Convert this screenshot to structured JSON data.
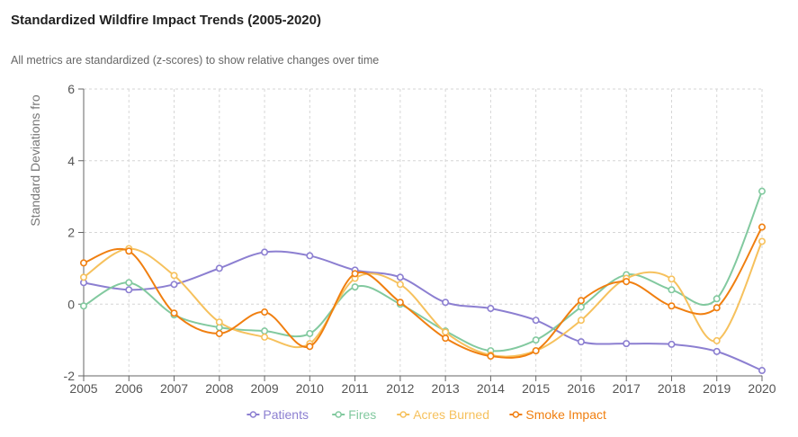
{
  "chart_data": {
    "type": "line",
    "title": "Standardized Wildfire Impact Trends (2005-2020)",
    "subtitle": "All metrics are standardized (z-scores) to show relative changes over time",
    "ylabel": "Standard Deviations fro",
    "xlabel": "",
    "x": [
      "2005",
      "2006",
      "2007",
      "2008",
      "2009",
      "2010",
      "2011",
      "2012",
      "2013",
      "2014",
      "2015",
      "2016",
      "2017",
      "2018",
      "2019",
      "2020"
    ],
    "ylim": [
      -2,
      6
    ],
    "yticks": [
      "6",
      "4",
      "2",
      "0",
      "-2"
    ],
    "grid": true,
    "legend_position": "bottom",
    "series": [
      {
        "name": "Patients",
        "color": "#8c7fd1",
        "values": [
          0.6,
          0.4,
          0.55,
          1.0,
          1.45,
          1.35,
          0.95,
          0.75,
          0.05,
          -0.12,
          -0.45,
          -1.05,
          -1.1,
          -1.12,
          -1.32,
          -1.85
        ]
      },
      {
        "name": "Fires",
        "color": "#82c99f",
        "values": [
          -0.05,
          0.6,
          -0.3,
          -0.65,
          -0.75,
          -0.82,
          0.48,
          0.0,
          -0.75,
          -1.3,
          -1.0,
          -0.08,
          0.82,
          0.4,
          0.15,
          3.15
        ]
      },
      {
        "name": "Acres Burned",
        "color": "#f6c15d",
        "values": [
          0.75,
          1.55,
          0.8,
          -0.5,
          -0.92,
          -1.1,
          0.72,
          0.55,
          -0.78,
          -1.42,
          -1.3,
          -0.45,
          0.72,
          0.7,
          -1.02,
          1.75
        ]
      },
      {
        "name": "Smoke Impact",
        "color": "#f07f10",
        "values": [
          1.15,
          1.48,
          -0.25,
          -0.82,
          -0.22,
          -1.18,
          0.85,
          0.05,
          -0.95,
          -1.45,
          -1.3,
          0.1,
          0.63,
          -0.05,
          -0.1,
          2.15
        ]
      }
    ]
  }
}
